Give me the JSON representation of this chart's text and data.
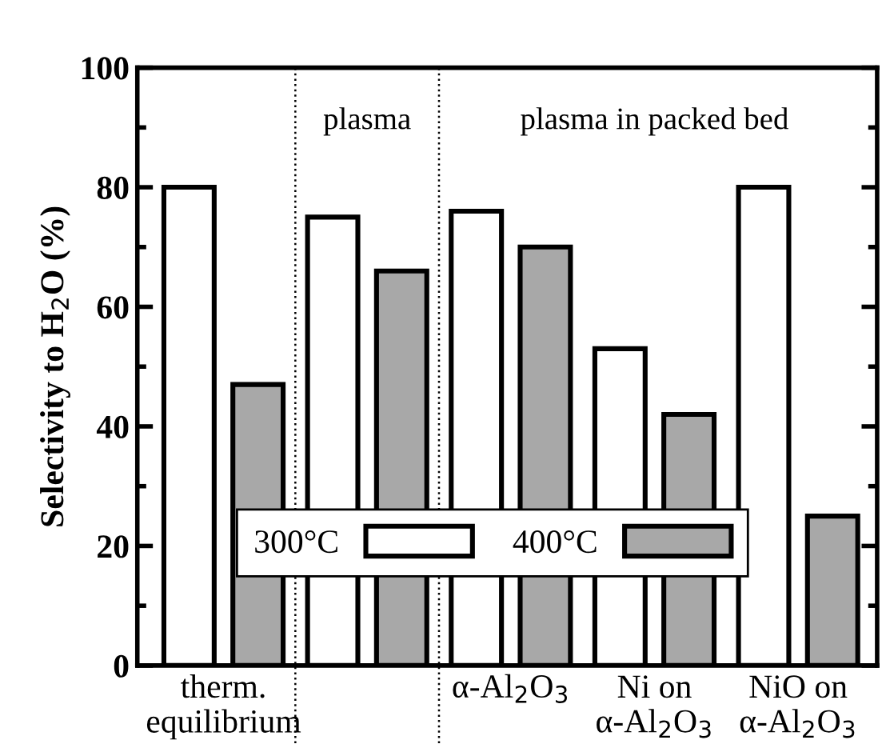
{
  "chart_data": {
    "type": "bar",
    "ylabel": "Selectivity to H$_{2}$O (%)",
    "categories": [
      "therm.\nequilibrium",
      null,
      "α-Al$_{2}$O$_{3}$",
      "Ni on\nα-Al$_{2}$O$_{3}$",
      "NiO on\nα-Al$_{2}$O$_{3}$"
    ],
    "series": [
      {
        "name": "300°C",
        "color": "#ffffff",
        "values": [
          80,
          75,
          76,
          53,
          80
        ]
      },
      {
        "name": "400°C",
        "color": "#a8a8a8",
        "values": [
          47,
          66,
          70,
          42,
          25
        ]
      }
    ],
    "ylim": [
      0,
      100
    ],
    "yticks": [
      0,
      20,
      40,
      60,
      80,
      100
    ],
    "annotations": [
      "plasma",
      "plasma in packed bed"
    ],
    "legend": "bottom",
    "grid": false
  }
}
